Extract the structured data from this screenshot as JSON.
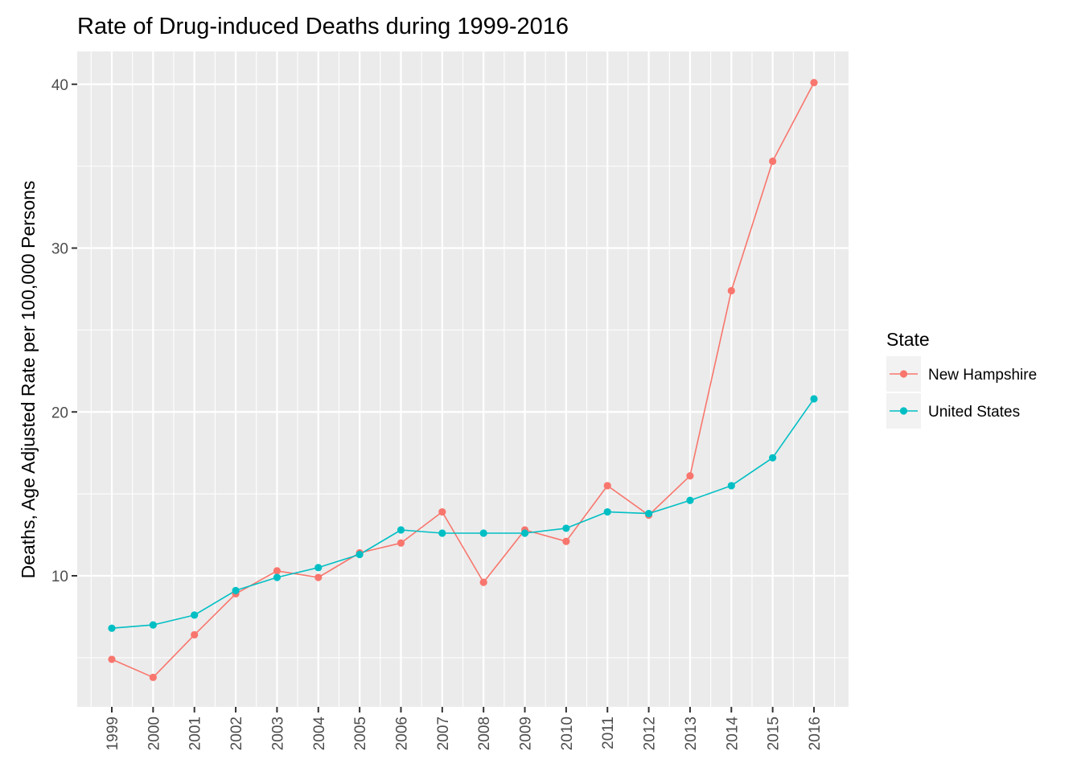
{
  "chart_data": {
    "type": "line",
    "title": "Rate of Drug-induced Deaths during 1999-2016",
    "xlabel": "",
    "ylabel": "Deaths, Age Adjusted Rate per 100,000 Persons",
    "categories": [
      "1999",
      "2000",
      "2001",
      "2002",
      "2003",
      "2004",
      "2005",
      "2006",
      "2007",
      "2008",
      "2009",
      "2010",
      "2011",
      "2012",
      "2013",
      "2014",
      "2015",
      "2016"
    ],
    "ylim": [
      2.0,
      42.0
    ],
    "yticks": [
      10,
      20,
      30,
      40
    ],
    "yticks_minor": [
      5,
      15,
      25,
      35
    ],
    "grid": true,
    "legend": {
      "title": "State",
      "position": "right"
    },
    "series": [
      {
        "name": "New Hampshire",
        "color": "#F8766D",
        "values": [
          4.9,
          3.8,
          6.4,
          8.9,
          10.3,
          9.9,
          11.4,
          12.0,
          13.9,
          9.6,
          12.8,
          12.1,
          15.5,
          13.7,
          16.1,
          27.4,
          35.3,
          40.1
        ]
      },
      {
        "name": "United States",
        "color": "#00BFC4",
        "values": [
          6.8,
          7.0,
          7.6,
          9.1,
          9.9,
          10.5,
          11.3,
          12.8,
          12.6,
          12.6,
          12.6,
          12.9,
          13.9,
          13.8,
          14.6,
          15.5,
          17.2,
          20.8
        ]
      }
    ]
  },
  "theme": {
    "panel_bg": "#EBEBEB",
    "grid_color": "#FFFFFF",
    "tick_color": "#333333",
    "tick_label_color": "#4D4D4D",
    "legend_key_bg": "#F2F2F2"
  }
}
